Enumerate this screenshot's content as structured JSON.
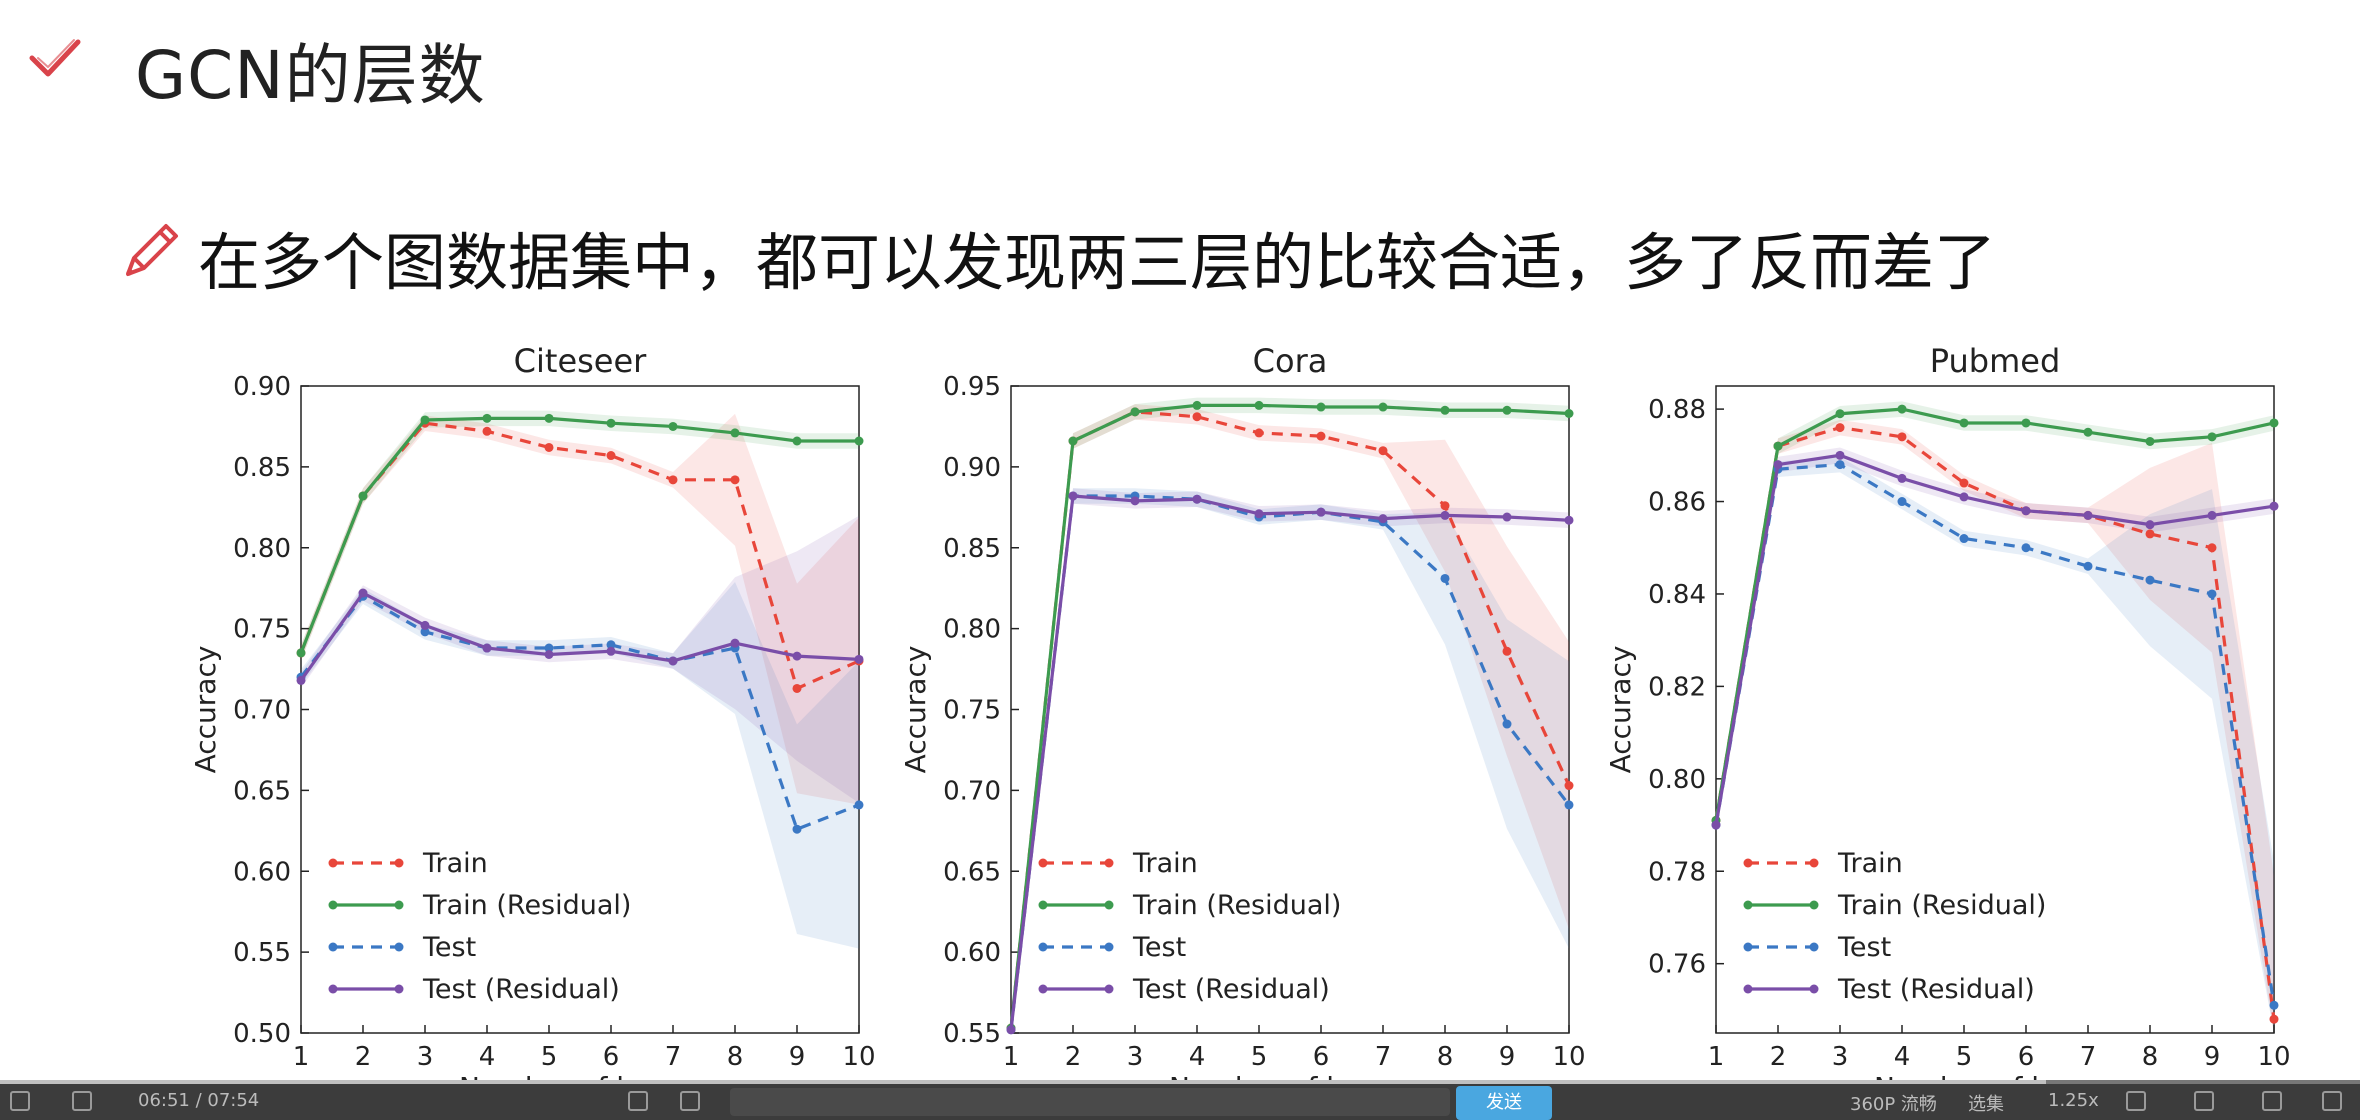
{
  "slide": {
    "title": "GCN的层数",
    "subtitle": "在多个图数据集中，都可以发现两三层的比较合适，多了反而差了"
  },
  "colors": {
    "train": "#e8463a",
    "train_residual": "#3d9b4f",
    "test": "#3b78c4",
    "test_residual": "#7a4ea8",
    "check": "#d9434a",
    "pencil": "#d9434a"
  },
  "chart_data": [
    {
      "type": "line",
      "title": "Citeseer",
      "xlabel": "Number of layers",
      "ylabel": "Accuracy",
      "xlim": [
        1,
        10
      ],
      "ylim": [
        0.5,
        0.9
      ],
      "xticks": [
        "1",
        "2",
        "3",
        "4",
        "5",
        "6",
        "7",
        "8",
        "9",
        "10"
      ],
      "yticks": [
        "0.50",
        "0.55",
        "0.60",
        "0.65",
        "0.70",
        "0.75",
        "0.80",
        "0.85",
        "0.90"
      ],
      "legend_position": "lower-left",
      "x": [
        1,
        2,
        3,
        4,
        5,
        6,
        7,
        8,
        9,
        10
      ],
      "series": [
        {
          "name": "Train",
          "style": "dashed",
          "color": "#e8463a",
          "values": [
            0.735,
            0.832,
            0.877,
            0.872,
            0.862,
            0.857,
            0.842,
            0.842,
            0.713,
            0.73
          ]
        },
        {
          "name": "Train (Residual)",
          "style": "solid",
          "color": "#3d9b4f",
          "values": [
            0.735,
            0.832,
            0.879,
            0.88,
            0.88,
            0.877,
            0.875,
            0.871,
            0.866,
            0.866
          ]
        },
        {
          "name": "Test",
          "style": "dashed",
          "color": "#3b78c4",
          "values": [
            0.72,
            0.77,
            0.748,
            0.738,
            0.738,
            0.74,
            0.73,
            0.738,
            0.626,
            0.641
          ]
        },
        {
          "name": "Test (Residual)",
          "style": "solid",
          "color": "#7a4ea8",
          "values": [
            0.718,
            0.772,
            0.752,
            0.738,
            0.734,
            0.736,
            0.73,
            0.741,
            0.733,
            0.731
          ]
        }
      ]
    },
    {
      "type": "line",
      "title": "Cora",
      "xlabel": "Number of layers",
      "ylabel": "Accuracy",
      "xlim": [
        1,
        10
      ],
      "ylim": [
        0.55,
        0.95
      ],
      "xticks": [
        "1",
        "2",
        "3",
        "4",
        "5",
        "6",
        "7",
        "8",
        "9",
        "10"
      ],
      "yticks": [
        "0.55",
        "0.60",
        "0.65",
        "0.70",
        "0.75",
        "0.80",
        "0.85",
        "0.90",
        "0.95"
      ],
      "legend_position": "lower-left",
      "x": [
        1,
        2,
        3,
        4,
        5,
        6,
        7,
        8,
        9,
        10
      ],
      "series": [
        {
          "name": "Train",
          "style": "dashed",
          "color": "#e8463a",
          "values": [
            0.553,
            0.916,
            0.934,
            0.931,
            0.921,
            0.919,
            0.91,
            0.876,
            0.786,
            0.703
          ]
        },
        {
          "name": "Train (Residual)",
          "style": "solid",
          "color": "#3d9b4f",
          "values": [
            0.553,
            0.916,
            0.934,
            0.938,
            0.938,
            0.937,
            0.937,
            0.935,
            0.935,
            0.933
          ]
        },
        {
          "name": "Test",
          "style": "dashed",
          "color": "#3b78c4",
          "values": [
            0.552,
            0.882,
            0.882,
            0.88,
            0.869,
            0.872,
            0.866,
            0.831,
            0.741,
            0.691
          ]
        },
        {
          "name": "Test (Residual)",
          "style": "solid",
          "color": "#7a4ea8",
          "values": [
            0.552,
            0.882,
            0.879,
            0.88,
            0.871,
            0.872,
            0.868,
            0.87,
            0.869,
            0.867
          ]
        }
      ]
    },
    {
      "type": "line",
      "title": "Pubmed",
      "xlabel": "Number of layers",
      "ylabel": "Accuracy",
      "xlim": [
        1,
        10
      ],
      "ylim": [
        0.745,
        0.885
      ],
      "xticks": [
        "1",
        "2",
        "3",
        "4",
        "5",
        "6",
        "7",
        "8",
        "9",
        "10"
      ],
      "yticks": [
        "0.76",
        "0.78",
        "0.80",
        "0.82",
        "0.84",
        "0.86",
        "0.88"
      ],
      "legend_position": "lower-left",
      "x": [
        1,
        2,
        3,
        4,
        5,
        6,
        7,
        8,
        9,
        10
      ],
      "series": [
        {
          "name": "Train",
          "style": "dashed",
          "color": "#e8463a",
          "values": [
            0.791,
            0.872,
            0.876,
            0.874,
            0.864,
            0.858,
            0.857,
            0.853,
            0.85,
            0.748
          ]
        },
        {
          "name": "Train (Residual)",
          "style": "solid",
          "color": "#3d9b4f",
          "values": [
            0.791,
            0.872,
            0.879,
            0.88,
            0.877,
            0.877,
            0.875,
            0.873,
            0.874,
            0.877
          ]
        },
        {
          "name": "Test",
          "style": "dashed",
          "color": "#3b78c4",
          "values": [
            0.79,
            0.867,
            0.868,
            0.86,
            0.852,
            0.85,
            0.846,
            0.843,
            0.84,
            0.751
          ]
        },
        {
          "name": "Test (Residual)",
          "style": "solid",
          "color": "#7a4ea8",
          "values": [
            0.79,
            0.868,
            0.87,
            0.865,
            0.861,
            0.858,
            0.857,
            0.855,
            0.857,
            0.859
          ]
        }
      ]
    }
  ],
  "player": {
    "time": "06:51 / 07:54",
    "send": "发送",
    "quality": "360P 流畅",
    "select": "选集",
    "speed": "1.25x"
  }
}
